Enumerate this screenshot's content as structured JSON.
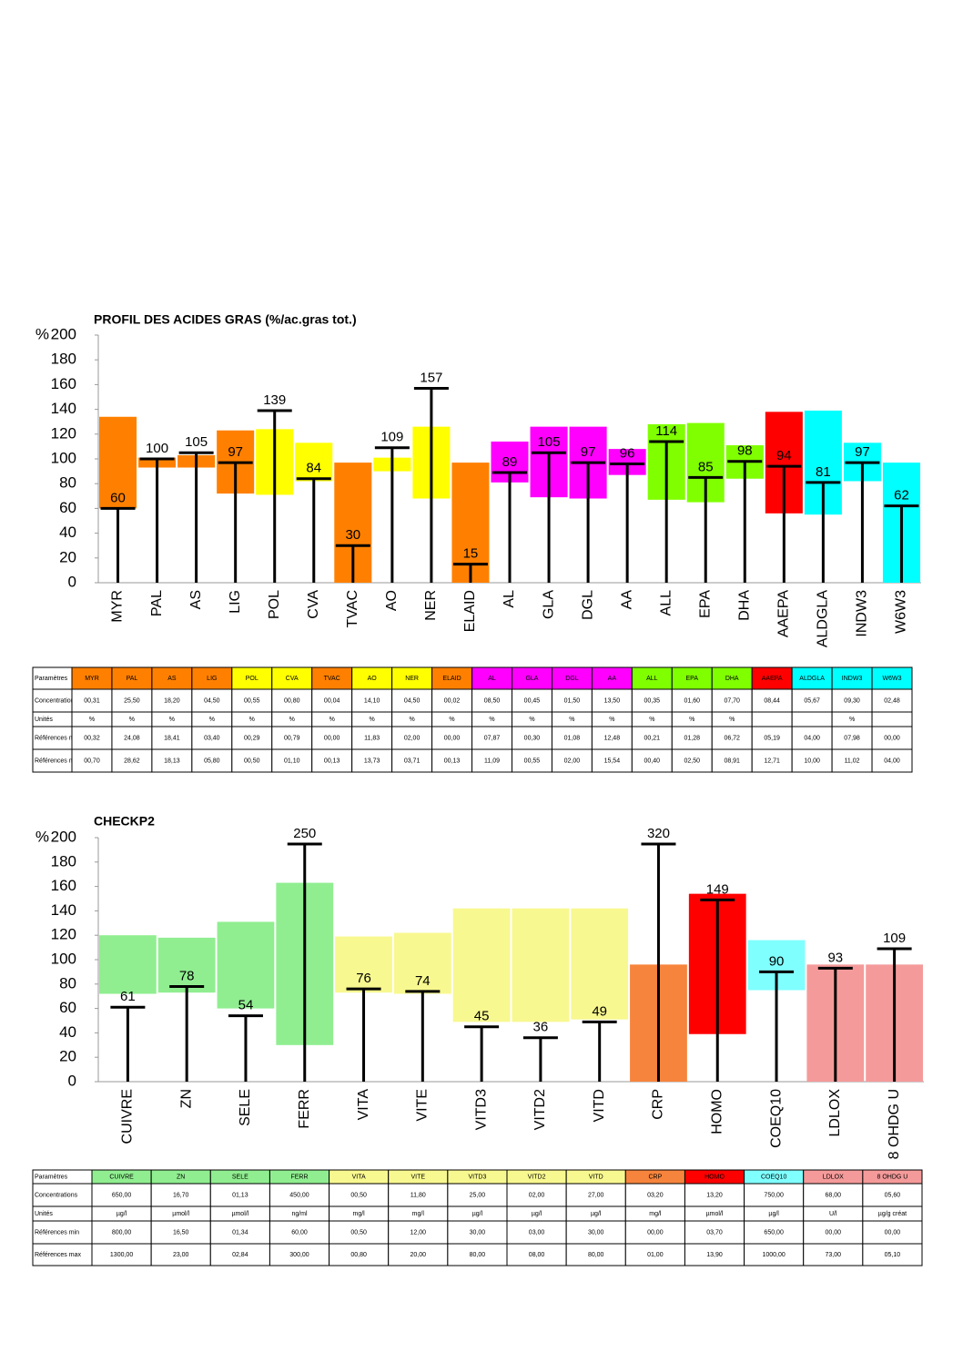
{
  "chart_data": [
    {
      "type": "range",
      "title": "PROFIL DES ACIDES GRAS (%/ac.gras tot.)",
      "y_unit": "%",
      "categories": [
        "MYR",
        "PAL",
        "AS",
        "LIG",
        "POL",
        "CVA",
        "TVAC",
        "AO",
        "NER",
        "ELAID",
        "AL",
        "GLA",
        "DGL",
        "AA",
        "ALL",
        "EPA",
        "DHA",
        "AAEPA",
        "ALDGLA",
        "INDW3",
        "W6W3"
      ],
      "values": [
        60,
        100,
        105,
        97,
        139,
        84,
        30,
        109,
        157,
        15,
        89,
        105,
        97,
        96,
        114,
        85,
        98,
        94,
        81,
        97,
        62
      ],
      "range_low": [
        60,
        93,
        93,
        72,
        71,
        82,
        0,
        90,
        68,
        0,
        81,
        69,
        68,
        87,
        67,
        65,
        84,
        56,
        55,
        82,
        0
      ],
      "range_high": [
        134,
        101,
        103,
        123,
        124,
        113,
        97,
        101,
        126,
        97,
        114,
        126,
        126,
        108,
        128,
        129,
        111,
        138,
        139,
        113,
        97
      ],
      "colors": [
        "#ff8000",
        "#ff8000",
        "#ff8000",
        "#ff8000",
        "#ffff00",
        "#ffff00",
        "#ff8000",
        "#ffff00",
        "#ffff00",
        "#ff8000",
        "#ff00ff",
        "#ff00ff",
        "#ff00ff",
        "#ff00ff",
        "#80ff00",
        "#80ff00",
        "#80ff00",
        "#ff0000",
        "#00ffff",
        "#00ffff",
        "#00ffff"
      ],
      "ylim": [
        0,
        200
      ],
      "yticks": [
        0,
        20,
        40,
        60,
        80,
        100,
        120,
        140,
        160,
        180,
        200
      ]
    },
    {
      "type": "range",
      "title": "CHECKP2",
      "y_unit": "%",
      "categories": [
        "CUIVRE",
        "ZN",
        "SELE",
        "FERR",
        "VITA",
        "VITE",
        "VITD3",
        "VITD2",
        "VITD",
        "CRP",
        "HOMO",
        "COEQ10",
        "LDLOX",
        "8 OHDG U"
      ],
      "values": [
        61,
        78,
        54,
        250,
        76,
        74,
        45,
        36,
        49,
        320,
        149,
        90,
        93,
        109
      ],
      "range_low": [
        72,
        73,
        60,
        30,
        73,
        72,
        49,
        49,
        51,
        0,
        39,
        75,
        0,
        0
      ],
      "range_high": [
        120,
        118,
        131,
        163,
        119,
        122,
        142,
        142,
        142,
        96,
        154,
        116,
        96,
        96
      ],
      "colors": [
        "#90ee90",
        "#90ee90",
        "#90ee90",
        "#90ee90",
        "#f8f890",
        "#f8f890",
        "#f8f890",
        "#f8f890",
        "#f8f890",
        "#f7843c",
        "#ff0000",
        "#80ffff",
        "#f59a9a",
        "#f59a9a"
      ],
      "ylim": [
        0,
        200
      ],
      "yticks": [
        0,
        20,
        40,
        60,
        80,
        100,
        120,
        140,
        160,
        180,
        200
      ]
    }
  ],
  "tables": [
    {
      "header": "Paramètres",
      "rows": [
        {
          "label": "Concentrations",
          "cells": [
            "00,31",
            "25,50",
            "18,20",
            "04,50",
            "00,55",
            "00,80",
            "00,04",
            "14,10",
            "04,50",
            "00,02",
            "08,50",
            "00,45",
            "01,50",
            "13,50",
            "00,35",
            "01,60",
            "07,70",
            "08,44",
            "05,67",
            "09,30",
            "02,48"
          ]
        },
        {
          "label": "Unités",
          "cells": [
            "%",
            "%",
            "%",
            "%",
            "%",
            "%",
            "%",
            "%",
            "%",
            "%",
            "%",
            "%",
            "%",
            "%",
            "%",
            "%",
            "%",
            null,
            null,
            "%",
            null
          ]
        },
        {
          "label": "Références min",
          "cells": [
            "00,32",
            "24,08",
            "18,41",
            "03,40",
            "00,29",
            "00,79",
            "00,00",
            "11,83",
            "02,00",
            "00,00",
            "07,87",
            "00,30",
            "01,08",
            "12,48",
            "00,21",
            "01,28",
            "06,72",
            "05,19",
            "04,00",
            "07,98",
            "00,00"
          ]
        },
        {
          "label": "Références max",
          "cells": [
            "00,70",
            "28,62",
            "18,13",
            "05,80",
            "00,50",
            "01,10",
            "00,13",
            "13,73",
            "03,71",
            "00,13",
            "11,09",
            "00,55",
            "02,00",
            "15,54",
            "00,40",
            "02,50",
            "08,91",
            "12,71",
            "10,00",
            "11,02",
            "04,00"
          ]
        }
      ]
    },
    {
      "header": "Paramètres",
      "rows": [
        {
          "label": "Concentrations",
          "cells": [
            "650,00",
            "16,70",
            "01,13",
            "450,00",
            "00,50",
            "11,80",
            "25,00",
            "02,00",
            "27,00",
            "03,20",
            "13,20",
            "750,00",
            "68,00",
            "05,60"
          ]
        },
        {
          "label": "Unités",
          "cells": [
            "µg/l",
            "µmol/l",
            "µmol/l",
            "ng/ml",
            "mg/l",
            "mg/l",
            "µg/l",
            "µg/l",
            "µg/l",
            "mg/l",
            "µmol/l",
            "µg/l",
            "U/l",
            "µg/g créat"
          ]
        },
        {
          "label": "Références min",
          "cells": [
            "800,00",
            "16,50",
            "01,34",
            "60,00",
            "00,50",
            "12,00",
            "30,00",
            "03,00",
            "30,00",
            "00,00",
            "03,70",
            "650,00",
            "00,00",
            "00,00"
          ]
        },
        {
          "label": "Références max",
          "cells": [
            "1300,00",
            "23,00",
            "02,84",
            "300,00",
            "00,80",
            "20,00",
            "80,00",
            "08,00",
            "80,00",
            "01,00",
            "13,90",
            "1000,00",
            "73,00",
            "05,10"
          ]
        }
      ]
    }
  ]
}
